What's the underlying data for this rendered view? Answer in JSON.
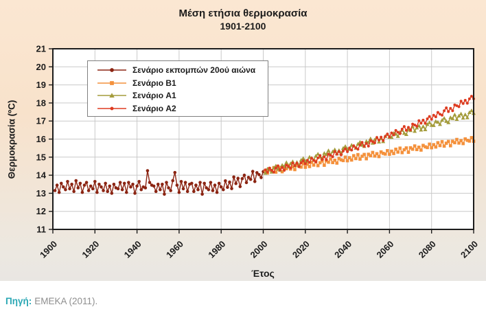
{
  "source": {
    "prefix": "Πηγή:",
    "text": "ΕΜΕΚΑ (2011)."
  },
  "chart_data": {
    "type": "line",
    "title": "Μέση ετήσια θερμοκρασία 1901-2100",
    "title_lines": [
      "Μέση ετήσια θερμοκρασία",
      "1901-2100"
    ],
    "xlabel": "Έτος",
    "ylabel": "Θερμοκρασία (ºC)",
    "xlim": [
      1900,
      2100
    ],
    "ylim": [
      11,
      21
    ],
    "x_ticks": [
      1900,
      1920,
      1940,
      1960,
      1980,
      2000,
      2020,
      2040,
      2060,
      2080,
      2100
    ],
    "y_ticks": [
      11,
      12,
      13,
      14,
      15,
      16,
      17,
      18,
      19,
      20,
      21
    ],
    "grid": true,
    "legend_position": "top-left-inside",
    "plot_bg": "#ffffff",
    "grid_color": "#c9c9c9",
    "axis_color": "#1c1c1c",
    "series": [
      {
        "id": "emissions-20c",
        "name": "Σενάριο εκπομπών 20ού αιώνα",
        "color": "#8b2412",
        "marker": "circle",
        "start_year": 1901,
        "values": [
          13.15,
          13.45,
          13.05,
          13.55,
          13.35,
          13.2,
          13.65,
          13.25,
          13.5,
          13.1,
          13.7,
          13.3,
          13.55,
          13.05,
          13.45,
          13.6,
          13.15,
          13.4,
          13.25,
          13.65,
          13.05,
          13.5,
          13.35,
          13.15,
          13.55,
          13.1,
          13.4,
          13.0,
          13.5,
          13.3,
          13.25,
          13.6,
          13.2,
          13.55,
          13.05,
          13.6,
          13.35,
          13.5,
          13.0,
          13.4,
          13.65,
          13.2,
          13.35,
          13.3,
          14.25,
          13.6,
          13.45,
          13.4,
          13.1,
          13.5,
          13.2,
          13.5,
          12.95,
          13.6,
          13.3,
          13.15,
          13.7,
          14.15,
          13.45,
          13.05,
          13.65,
          13.25,
          13.6,
          13.1,
          13.5,
          13.55,
          13.1,
          13.45,
          13.2,
          13.6,
          12.95,
          13.55,
          13.3,
          13.2,
          13.6,
          13.15,
          13.45,
          13.05,
          13.55,
          13.35,
          13.2,
          13.69,
          13.33,
          13.62,
          13.26,
          13.9,
          13.54,
          13.83,
          13.37,
          13.81,
          14.0,
          13.59,
          13.88,
          13.77,
          14.21,
          13.65,
          14.14,
          14.03,
          13.87,
          14.2
        ]
      },
      {
        "id": "b1",
        "name": "Σενάριο B1",
        "color": "#f4913c",
        "marker": "square",
        "start_year": 2001,
        "values": [
          14.25,
          14.12,
          14.36,
          14.2,
          14.42,
          14.17,
          14.33,
          14.43,
          14.19,
          14.44,
          14.36,
          14.54,
          14.34,
          14.47,
          14.31,
          14.57,
          14.49,
          14.45,
          14.64,
          14.44,
          14.61,
          14.48,
          14.72,
          14.56,
          14.78,
          14.53,
          14.69,
          14.79,
          14.55,
          14.8,
          14.72,
          14.9,
          14.7,
          14.83,
          14.67,
          14.93,
          14.85,
          14.81,
          15.0,
          14.8,
          14.97,
          14.84,
          15.08,
          14.92,
          15.14,
          14.89,
          15.05,
          15.15,
          14.91,
          15.16,
          15.08,
          15.26,
          15.06,
          15.19,
          15.03,
          15.29,
          15.21,
          15.17,
          15.36,
          15.16,
          15.33,
          15.2,
          15.44,
          15.28,
          15.5,
          15.25,
          15.41,
          15.51,
          15.27,
          15.52,
          15.44,
          15.62,
          15.42,
          15.55,
          15.39,
          15.65,
          15.57,
          15.53,
          15.72,
          15.52,
          15.69,
          15.56,
          15.8,
          15.64,
          15.86,
          15.61,
          15.77,
          15.87,
          15.63,
          15.88,
          15.8,
          15.98,
          15.78,
          15.91,
          15.75,
          16.01,
          15.93,
          15.89,
          16.08,
          15.88
        ]
      },
      {
        "id": "a1",
        "name": "Σενάριο A1",
        "color": "#a49c3c",
        "marker": "triangle",
        "start_year": 2001,
        "values": [
          14.12,
          14.35,
          14.3,
          14.18,
          14.41,
          14.52,
          14.35,
          14.28,
          14.56,
          14.5,
          14.71,
          14.46,
          14.65,
          14.76,
          14.53,
          14.72,
          14.55,
          14.84,
          14.94,
          14.79,
          14.78,
          15.01,
          14.96,
          14.84,
          15.07,
          15.18,
          15.01,
          14.94,
          15.22,
          15.16,
          15.37,
          15.12,
          15.31,
          15.42,
          15.19,
          15.38,
          15.21,
          15.5,
          15.6,
          15.45,
          15.44,
          15.67,
          15.62,
          15.5,
          15.73,
          15.84,
          15.67,
          15.6,
          15.88,
          15.82,
          16.03,
          15.78,
          15.97,
          16.08,
          15.85,
          16.04,
          15.87,
          16.16,
          16.26,
          16.11,
          16.1,
          16.33,
          16.28,
          16.16,
          16.39,
          16.5,
          16.33,
          16.26,
          16.54,
          16.48,
          16.69,
          16.44,
          16.63,
          16.74,
          16.51,
          16.7,
          16.53,
          16.82,
          16.92,
          16.77,
          16.76,
          16.99,
          16.94,
          16.82,
          17.05,
          17.16,
          16.99,
          16.92,
          17.2,
          17.14,
          17.35,
          17.1,
          17.29,
          17.4,
          17.17,
          17.36,
          17.19,
          17.48,
          17.58,
          17.43
        ]
      },
      {
        "id": "a2",
        "name": "Σενάριο A2",
        "color": "#dd3b20",
        "marker": "circle-small",
        "start_year": 2001,
        "values": [
          14.3,
          14.17,
          14.4,
          14.27,
          14.17,
          14.4,
          14.52,
          14.29,
          14.43,
          14.27,
          14.56,
          14.49,
          14.4,
          14.68,
          14.52,
          14.67,
          14.47,
          14.69,
          14.8,
          14.63,
          14.83,
          14.71,
          14.94,
          14.82,
          14.73,
          14.96,
          15.09,
          14.87,
          15.02,
          14.86,
          15.17,
          15.1,
          15.02,
          15.31,
          15.16,
          15.31,
          15.12,
          15.34,
          15.46,
          15.3,
          15.51,
          15.39,
          15.63,
          15.52,
          15.44,
          15.68,
          15.82,
          15.6,
          15.76,
          15.61,
          15.92,
          15.86,
          15.79,
          16.09,
          15.94,
          16.11,
          15.92,
          16.15,
          16.28,
          16.12,
          16.34,
          16.23,
          16.48,
          16.38,
          16.3,
          16.55,
          16.7,
          16.48,
          16.65,
          16.51,
          16.83,
          16.78,
          16.71,
          17.02,
          16.88,
          17.05,
          16.87,
          17.12,
          17.25,
          17.1,
          17.32,
          17.23,
          17.48,
          17.38,
          17.32,
          17.57,
          17.73,
          17.52,
          17.7,
          17.57,
          17.89,
          17.85,
          17.79,
          18.1,
          17.97,
          18.15,
          17.98,
          18.23,
          18.37,
          18.23
        ]
      }
    ]
  }
}
